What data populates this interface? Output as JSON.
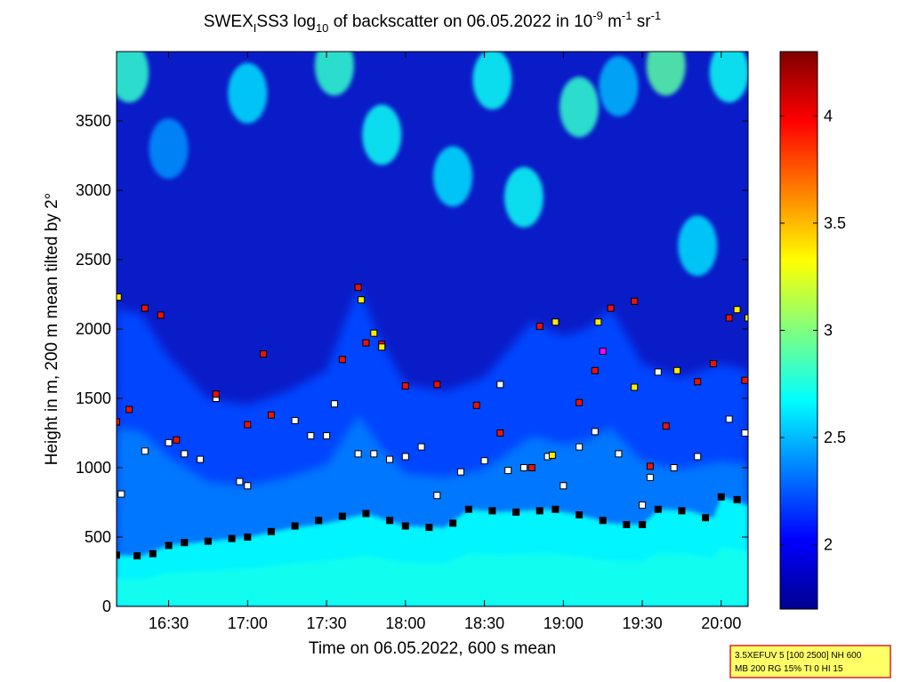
{
  "chart_data": {
    "type": "heatmap",
    "title": {
      "prefix": "SWEX",
      "sub_i": "I",
      "mid": "SS3 log",
      "sub_10": "10",
      "mid2": " of backscatter on 06.05.2022 in 10",
      "sup_m9": "-9",
      "mid3": " m",
      "sup_m1a": "-1",
      "mid4": " sr",
      "sup_m1b": "-1"
    },
    "xlabel": "Time on 06.05.2022, 600 s mean",
    "ylabel": "Height in m, 200 m mean tilted by 2°",
    "x_range_hours": [
      16.17,
      20.17
    ],
    "x_ticks": [
      {
        "value": 16.5,
        "label": "16:30"
      },
      {
        "value": 17.0,
        "label": "17:00"
      },
      {
        "value": 17.5,
        "label": "17:30"
      },
      {
        "value": 18.0,
        "label": "18:00"
      },
      {
        "value": 18.5,
        "label": "18:30"
      },
      {
        "value": 19.0,
        "label": "19:00"
      },
      {
        "value": 19.5,
        "label": "19:30"
      },
      {
        "value": 20.0,
        "label": "20:00"
      }
    ],
    "ylim": [
      0,
      4000
    ],
    "y_ticks": [
      {
        "value": 0,
        "label": "0"
      },
      {
        "value": 500,
        "label": "500"
      },
      {
        "value": 1000,
        "label": "1000"
      },
      {
        "value": 1500,
        "label": "1500"
      },
      {
        "value": 2000,
        "label": "2000"
      },
      {
        "value": 2500,
        "label": "2500"
      },
      {
        "value": 3000,
        "label": "3000"
      },
      {
        "value": 3500,
        "label": "3500"
      }
    ],
    "colorbar": {
      "range": [
        1.7,
        4.3
      ],
      "ticks": [
        {
          "value": 2,
          "label": "2"
        },
        {
          "value": 2.5,
          "label": "2.5"
        },
        {
          "value": 3,
          "label": "3"
        },
        {
          "value": 3.5,
          "label": "3.5"
        },
        {
          "value": 4,
          "label": "4"
        }
      ],
      "colormap": "jet"
    },
    "background_levels": {
      "surface_layer_top_m": [
        [
          16.17,
          370
        ],
        [
          16.33,
          365
        ],
        [
          16.5,
          440
        ],
        [
          16.75,
          470
        ],
        [
          17.0,
          500
        ],
        [
          17.25,
          560
        ],
        [
          17.5,
          600
        ],
        [
          17.75,
          670
        ],
        [
          18.0,
          580
        ],
        [
          18.25,
          570
        ],
        [
          18.4,
          700
        ],
        [
          18.6,
          680
        ],
        [
          18.9,
          700
        ],
        [
          19.1,
          660
        ],
        [
          19.3,
          600
        ],
        [
          19.5,
          590
        ],
        [
          19.6,
          700
        ],
        [
          19.8,
          690
        ],
        [
          19.95,
          640
        ],
        [
          20.0,
          790
        ],
        [
          20.17,
          730
        ]
      ],
      "boundary_layer_top_m": [
        [
          16.17,
          2150
        ],
        [
          16.33,
          2100
        ],
        [
          16.5,
          1800
        ],
        [
          16.75,
          1500
        ],
        [
          17.0,
          1450
        ],
        [
          17.25,
          1550
        ],
        [
          17.5,
          1700
        ],
        [
          17.7,
          2300
        ],
        [
          17.85,
          1900
        ],
        [
          18.0,
          1600
        ],
        [
          18.25,
          1550
        ],
        [
          18.5,
          1650
        ],
        [
          18.8,
          2050
        ],
        [
          19.0,
          1950
        ],
        [
          19.15,
          2000
        ],
        [
          19.3,
          2150
        ],
        [
          19.5,
          1750
        ],
        [
          19.75,
          1650
        ],
        [
          20.0,
          1750
        ],
        [
          20.17,
          1700
        ]
      ],
      "upper_patches": [
        {
          "t": 16.25,
          "h": 3850,
          "level": 2.8
        },
        {
          "t": 16.5,
          "h": 3300,
          "level": 2.4
        },
        {
          "t": 17.0,
          "h": 3700,
          "level": 2.6
        },
        {
          "t": 17.55,
          "h": 3900,
          "level": 2.8
        },
        {
          "t": 17.85,
          "h": 3400,
          "level": 2.7
        },
        {
          "t": 18.3,
          "h": 3100,
          "level": 2.6
        },
        {
          "t": 18.55,
          "h": 3800,
          "level": 2.7
        },
        {
          "t": 18.75,
          "h": 2950,
          "level": 2.7
        },
        {
          "t": 19.1,
          "h": 3600,
          "level": 2.8
        },
        {
          "t": 19.35,
          "h": 3750,
          "level": 2.5
        },
        {
          "t": 19.65,
          "h": 3900,
          "level": 2.9
        },
        {
          "t": 19.85,
          "h": 2600,
          "level": 2.6
        },
        {
          "t": 20.05,
          "h": 3850,
          "level": 2.7
        }
      ]
    },
    "marker_series": [
      {
        "marker": "black-square",
        "points": [
          [
            16.17,
            370
          ],
          [
            16.3,
            365
          ],
          [
            16.4,
            380
          ],
          [
            16.5,
            440
          ],
          [
            16.6,
            460
          ],
          [
            16.75,
            470
          ],
          [
            16.9,
            490
          ],
          [
            17.0,
            500
          ],
          [
            17.15,
            540
          ],
          [
            17.3,
            580
          ],
          [
            17.45,
            620
          ],
          [
            17.6,
            650
          ],
          [
            17.75,
            670
          ],
          [
            17.9,
            620
          ],
          [
            18.0,
            580
          ],
          [
            18.15,
            570
          ],
          [
            18.3,
            600
          ],
          [
            18.4,
            700
          ],
          [
            18.55,
            690
          ],
          [
            18.7,
            680
          ],
          [
            18.85,
            690
          ],
          [
            18.95,
            700
          ],
          [
            19.1,
            660
          ],
          [
            19.25,
            620
          ],
          [
            19.4,
            590
          ],
          [
            19.5,
            590
          ],
          [
            19.6,
            700
          ],
          [
            19.75,
            690
          ],
          [
            19.9,
            640
          ],
          [
            20.0,
            790
          ],
          [
            20.1,
            770
          ]
        ]
      },
      {
        "marker": "white-square",
        "points": [
          [
            16.2,
            810
          ],
          [
            16.35,
            1120
          ],
          [
            16.5,
            1180
          ],
          [
            16.6,
            1100
          ],
          [
            16.7,
            1060
          ],
          [
            16.95,
            900
          ],
          [
            17.0,
            870
          ],
          [
            17.4,
            1230
          ],
          [
            17.5,
            1230
          ],
          [
            17.55,
            1460
          ],
          [
            17.7,
            1100
          ],
          [
            17.8,
            1100
          ],
          [
            17.9,
            1060
          ],
          [
            18.0,
            1080
          ],
          [
            18.1,
            1150
          ],
          [
            18.2,
            800
          ],
          [
            18.35,
            970
          ],
          [
            18.5,
            1050
          ],
          [
            18.65,
            980
          ],
          [
            18.75,
            1000
          ],
          [
            18.9,
            1080
          ],
          [
            19.0,
            870
          ],
          [
            19.1,
            1150
          ],
          [
            19.2,
            1260
          ],
          [
            19.35,
            1100
          ],
          [
            19.5,
            730
          ],
          [
            19.55,
            930
          ],
          [
            19.7,
            1000
          ],
          [
            19.85,
            1080
          ],
          [
            20.05,
            1350
          ],
          [
            20.15,
            1250
          ],
          [
            16.8,
            1500
          ],
          [
            17.3,
            1340
          ],
          [
            18.6,
            1600
          ],
          [
            19.6,
            1690
          ]
        ]
      },
      {
        "marker": "red-square",
        "points": [
          [
            16.17,
            1330
          ],
          [
            16.25,
            1420
          ],
          [
            16.35,
            2150
          ],
          [
            16.45,
            2100
          ],
          [
            16.55,
            1200
          ],
          [
            16.8,
            1530
          ],
          [
            17.0,
            1310
          ],
          [
            17.1,
            1820
          ],
          [
            17.6,
            1780
          ],
          [
            17.7,
            2300
          ],
          [
            17.75,
            1900
          ],
          [
            17.85,
            1890
          ],
          [
            18.2,
            1600
          ],
          [
            18.45,
            1450
          ],
          [
            18.6,
            1250
          ],
          [
            18.8,
            1000
          ],
          [
            18.85,
            2020
          ],
          [
            19.1,
            1470
          ],
          [
            19.2,
            1700
          ],
          [
            19.3,
            2150
          ],
          [
            19.45,
            2200
          ],
          [
            19.65,
            1300
          ],
          [
            19.85,
            1620
          ],
          [
            19.95,
            1750
          ],
          [
            20.05,
            2080
          ],
          [
            20.15,
            1630
          ],
          [
            19.55,
            1010
          ],
          [
            17.15,
            1380
          ],
          [
            18.0,
            1590
          ]
        ]
      },
      {
        "marker": "yellow-square",
        "points": [
          [
            16.18,
            2230
          ],
          [
            17.72,
            2210
          ],
          [
            17.8,
            1970
          ],
          [
            17.85,
            1870
          ],
          [
            18.95,
            2050
          ],
          [
            19.22,
            2050
          ],
          [
            19.45,
            1580
          ],
          [
            19.72,
            1700
          ],
          [
            20.1,
            2140
          ],
          [
            20.17,
            2080
          ],
          [
            18.93,
            1090
          ]
        ]
      },
      {
        "marker": "magenta-square",
        "points": [
          [
            19.25,
            1840
          ]
        ]
      }
    ]
  },
  "info_box": {
    "line1": "3.5XEFUV 5 [100 2500] NH 600",
    "line2": "MB 200 RG 15% TI 0 HI 15",
    "border_color": "#d62728",
    "background_color": "#ffff66"
  }
}
